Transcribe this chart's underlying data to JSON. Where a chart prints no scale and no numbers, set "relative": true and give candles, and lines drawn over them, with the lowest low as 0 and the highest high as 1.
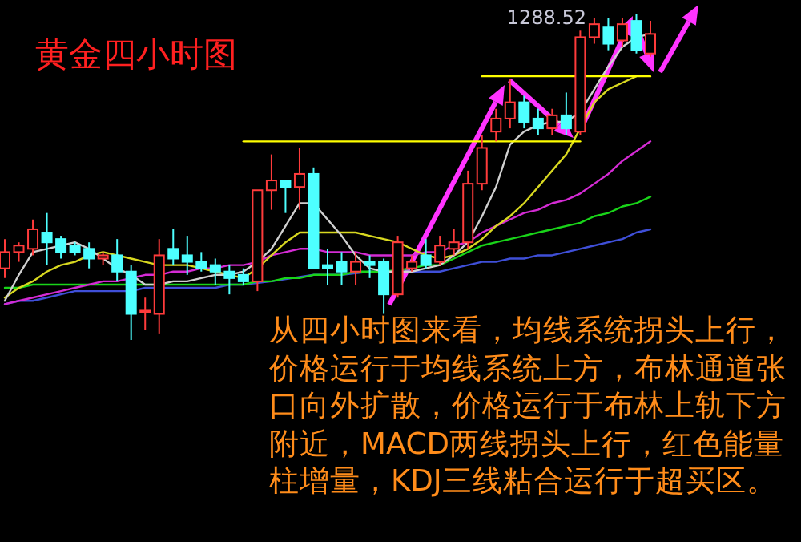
{
  "chart_data": {
    "type": "candlestick",
    "title": "黄金四小时图",
    "relative": true,
    "categories": [
      null,
      null,
      null,
      null,
      null,
      null,
      null,
      null,
      null,
      null,
      null,
      null,
      null,
      null,
      null,
      null,
      null,
      null,
      null,
      null,
      null,
      null,
      null,
      null,
      null,
      null,
      null,
      null,
      null,
      null,
      null,
      null,
      null,
      null,
      null,
      null,
      null,
      null,
      null,
      null,
      null,
      null,
      null,
      null,
      null,
      null,
      null
    ],
    "ohlc": [
      [
        0.22,
        0.31,
        0.19,
        0.27
      ],
      [
        0.27,
        0.3,
        0.24,
        0.29
      ],
      [
        0.28,
        0.37,
        0.26,
        0.34
      ],
      [
        0.33,
        0.39,
        0.23,
        0.3
      ],
      [
        0.31,
        0.32,
        0.25,
        0.27
      ],
      [
        0.29,
        0.3,
        0.26,
        0.27
      ],
      [
        0.28,
        0.3,
        0.22,
        0.25
      ],
      [
        0.25,
        0.27,
        0.23,
        0.26
      ],
      [
        0.26,
        0.31,
        0.18,
        0.21
      ],
      [
        0.21,
        0.23,
        0,
        0.08
      ],
      [
        0.09,
        0.13,
        0.03,
        0.09
      ],
      [
        0.08,
        0.31,
        0.02,
        0.26
      ],
      [
        0.28,
        0.34,
        0.23,
        0.25
      ],
      [
        0.26,
        0.32,
        0.2,
        0.24
      ],
      [
        0.24,
        0.27,
        0.21,
        0.22
      ],
      [
        0.23,
        0.25,
        0.17,
        0.21
      ],
      [
        0.21,
        0.23,
        0.14,
        0.19
      ],
      [
        0.2,
        0.22,
        0.17,
        0.18
      ],
      [
        0.18,
        0.46,
        0.15,
        0.46
      ],
      [
        0.46,
        0.57,
        0.4,
        0.49
      ],
      [
        0.49,
        0.49,
        0.39,
        0.47
      ],
      [
        0.47,
        0.59,
        0.4,
        0.51
      ],
      [
        0.51,
        0.53,
        0.22,
        0.22
      ],
      [
        0.23,
        0.28,
        0.17,
        0.22
      ],
      [
        0.24,
        0.27,
        0.17,
        0.21
      ],
      [
        0.21,
        0.27,
        0.17,
        0.24
      ],
      [
        0.24,
        0.26,
        0.19,
        0.23
      ],
      [
        0.24,
        0.25,
        0.08,
        0.14
      ],
      [
        0.14,
        0.32,
        0.13,
        0.3
      ],
      [
        0.22,
        0.26,
        0.21,
        0.24
      ],
      [
        0.26,
        0.31,
        0.22,
        0.23
      ],
      [
        0.24,
        0.32,
        0.23,
        0.29
      ],
      [
        0.28,
        0.34,
        0.26,
        0.3
      ],
      [
        0.3,
        0.52,
        0.28,
        0.48
      ],
      [
        0.48,
        0.63,
        0.46,
        0.59
      ],
      [
        0.64,
        0.71,
        0.61,
        0.68
      ],
      [
        0.68,
        0.8,
        0.65,
        0.73
      ],
      [
        0.73,
        0.75,
        0.65,
        0.67
      ],
      [
        0.68,
        0.71,
        0.63,
        0.65
      ],
      [
        0.65,
        0.71,
        0.63,
        0.69
      ],
      [
        0.69,
        0.76,
        0.63,
        0.65
      ],
      [
        0.64,
        0.95,
        0.63,
        0.93
      ],
      [
        0.93,
        0.99,
        0.91,
        0.97
      ],
      [
        0.96,
        0.99,
        0.89,
        0.91
      ],
      [
        0.92,
        0.99,
        0.9,
        0.97
      ],
      [
        0.98,
        1,
        0.88,
        0.89
      ],
      [
        0.88,
        0.98,
        0.87,
        0.94
      ]
    ],
    "colors": [
      "#ff3b3b",
      "#ff3b3b",
      "#ff3b3b",
      "#4dffff",
      "#4dffff",
      "#4dffff",
      "#4dffff",
      "#ff3b3b",
      "#4dffff",
      "#4dffff",
      "#ff3b3b",
      "#ff3b3b",
      "#4dffff",
      "#4dffff",
      "#4dffff",
      "#4dffff",
      "#4dffff",
      "#4dffff",
      "#ff3b3b",
      "#ff3b3b",
      "#4dffff",
      "#ff3b3b",
      "#4dffff",
      "#4dffff",
      "#4dffff",
      "#ff3b3b",
      "#4dffff",
      "#4dffff",
      "#ff3b3b",
      "#ff3b3b",
      "#4dffff",
      "#ff3b3b",
      "#ff3b3b",
      "#ff3b3b",
      "#ff3b3b",
      "#ff3b3b",
      "#ff3b3b",
      "#4dffff",
      "#4dffff",
      "#ff3b3b",
      "#4dffff",
      "#ff3b3b",
      "#ff3b3b",
      "#4dffff",
      "#ff3b3b",
      "#4dffff",
      "#ff3b3b"
    ],
    "series": [
      {
        "type": "line",
        "color": "#3f4fd8",
        "values": [
          0.11,
          0.12,
          0.12,
          0.13,
          0.14,
          0.15,
          0.15,
          0.15,
          0.15,
          0.15,
          0.16,
          0.16,
          0.16,
          0.16,
          0.16,
          0.16,
          0.17,
          0.17,
          null,
          0.18,
          null,
          null,
          0.2,
          0.2,
          0.2,
          null,
          0.21,
          null,
          null,
          0.21,
          0.21,
          0.21,
          0.22,
          0.23,
          0.24,
          0.24,
          0.25,
          0.25,
          0.26,
          0.26,
          0.27,
          0.28,
          0.29,
          0.3,
          0.31,
          0.33,
          0.34
        ]
      },
      {
        "type": "line",
        "color": "#19d419",
        "values": [
          0.16,
          0.16,
          0.17,
          0.17,
          0.17,
          0.17,
          0.17,
          0.17,
          0.17,
          0.17,
          0.17,
          null,
          0.17,
          0.17,
          0.17,
          0.17,
          0.17,
          0.17,
          0.18,
          0.18,
          0.19,
          0.19,
          0.2,
          0.2,
          0.2,
          0.21,
          0.21,
          0.21,
          null,
          0.22,
          0.23,
          0.23,
          0.25,
          0.27,
          0.29,
          0.3,
          0.31,
          0.32,
          0.33,
          0.34,
          0.35,
          0.36,
          0.38,
          0.39,
          0.41,
          0.42,
          0.44
        ]
      },
      {
        "type": "line",
        "color": "#d42bd4",
        "values": [
          0.11,
          0.12,
          0.13,
          0.14,
          0.15,
          0.16,
          0.17,
          0.18,
          0.18,
          0.19,
          0.2,
          0.2,
          0.21,
          0.21,
          0.22,
          0.22,
          0.23,
          0.23,
          0.24,
          0.26,
          0.27,
          0.28,
          0.28,
          0.27,
          0.27,
          0.27,
          0.26,
          0.26,
          0.26,
          0.26,
          0.27,
          0.27,
          0.29,
          0.3,
          0.33,
          0.35,
          0.37,
          0.39,
          0.4,
          0.42,
          0.43,
          0.45,
          0.48,
          0.51,
          0.55,
          0.58,
          0.61
        ]
      },
      {
        "type": "line",
        "color": "#d8d820",
        "values": [
          0.13,
          0.16,
          0.18,
          0.21,
          0.23,
          0.24,
          0.26,
          0.27,
          0.26,
          0.25,
          0.24,
          0.23,
          0.23,
          0.23,
          0.22,
          0.21,
          0.2,
          0.19,
          0.22,
          0.26,
          0.3,
          0.33,
          0.33,
          0.33,
          0.33,
          0.33,
          0.32,
          0.31,
          0.3,
          0.28,
          0.26,
          0.25,
          0.26,
          0.28,
          0.31,
          0.35,
          0.38,
          0.42,
          0.47,
          0.52,
          0.57,
          null,
          0.73,
          0.77,
          0.79,
          0.81,
          null
        ]
      },
      {
        "type": "line",
        "color": "#d0d0d0",
        "values": [
          0.12,
          0.2,
          0.27,
          0.28,
          0.29,
          0.3,
          0.28,
          0.25,
          0.22,
          0.2,
          0.17,
          0.17,
          0.18,
          0.18,
          0.19,
          0.2,
          0.2,
          0.21,
          0.24,
          0.28,
          0.35,
          0.42,
          0.42,
          0.37,
          0.32,
          0.26,
          0.22,
          0.21,
          0.21,
          0.21,
          0.22,
          0.23,
          0.26,
          0.3,
          0.38,
          0.47,
          0.6,
          0.64,
          0.66,
          0.67,
          0.67,
          0.7,
          0.77,
          0.84,
          0.9,
          0.93,
          0.94
        ]
      },
      {
        "type": "line",
        "color": "#ffff00",
        "values": [
          null,
          null,
          null,
          null,
          null,
          null,
          null,
          null,
          null,
          null,
          null,
          null,
          null,
          null,
          null,
          null,
          null,
          0.61,
          0.61,
          0.61,
          0.61,
          0.61,
          0.61,
          0.61,
          0.61,
          0.61,
          0.61,
          0.61,
          0.61,
          0.61,
          0.61,
          0.61,
          0.61,
          0.61,
          0.61,
          0.61,
          0.61,
          0.61,
          0.61,
          0.61,
          0.61,
          0.61,
          null,
          null,
          null,
          null,
          null
        ]
      },
      {
        "type": "line",
        "color": "#ffff00",
        "values": [
          null,
          null,
          null,
          null,
          null,
          null,
          null,
          null,
          null,
          null,
          null,
          null,
          null,
          null,
          null,
          null,
          null,
          null,
          null,
          null,
          null,
          null,
          null,
          null,
          null,
          null,
          null,
          null,
          null,
          null,
          null,
          null,
          null,
          null,
          0.81,
          0.81,
          0.81,
          0.81,
          0.81,
          0.81,
          0.81,
          0.81,
          0.81,
          0.81,
          0.81,
          0.81,
          0.81
        ]
      }
    ],
    "annotations": [
      "1288.52",
      "从四小时图来看，均线系统拐头上行，价格运行于均线系统上方，布林通道张口向外扩散，价格运行于布林上轨下方附近，MACD两线拐头上行，红色能量柱增量，KDJ三线粘合运行于超买区。"
    ]
  }
}
